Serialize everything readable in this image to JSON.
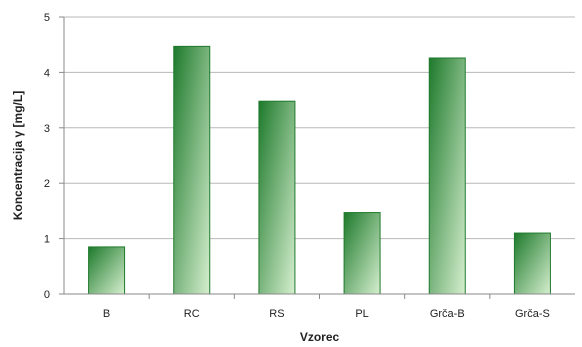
{
  "chart_data": {
    "type": "bar",
    "categories": [
      "B",
      "RC",
      "RS",
      "PL",
      "Grča-B",
      "Grča-S"
    ],
    "values": [
      0.85,
      4.47,
      3.48,
      1.47,
      4.26,
      1.1
    ],
    "xlabel": "Vzorec",
    "ylabel": "Koncentracija  γ [mg/L]",
    "ylim": [
      0,
      5
    ],
    "yticks": [
      0,
      1,
      2,
      3,
      4,
      5
    ],
    "grid": true,
    "colors": {
      "bar_dark": "#1e7a2c",
      "bar_light": "#d6efcf",
      "grid": "#b8b8b8",
      "axis": "#8a8a8a"
    }
  }
}
